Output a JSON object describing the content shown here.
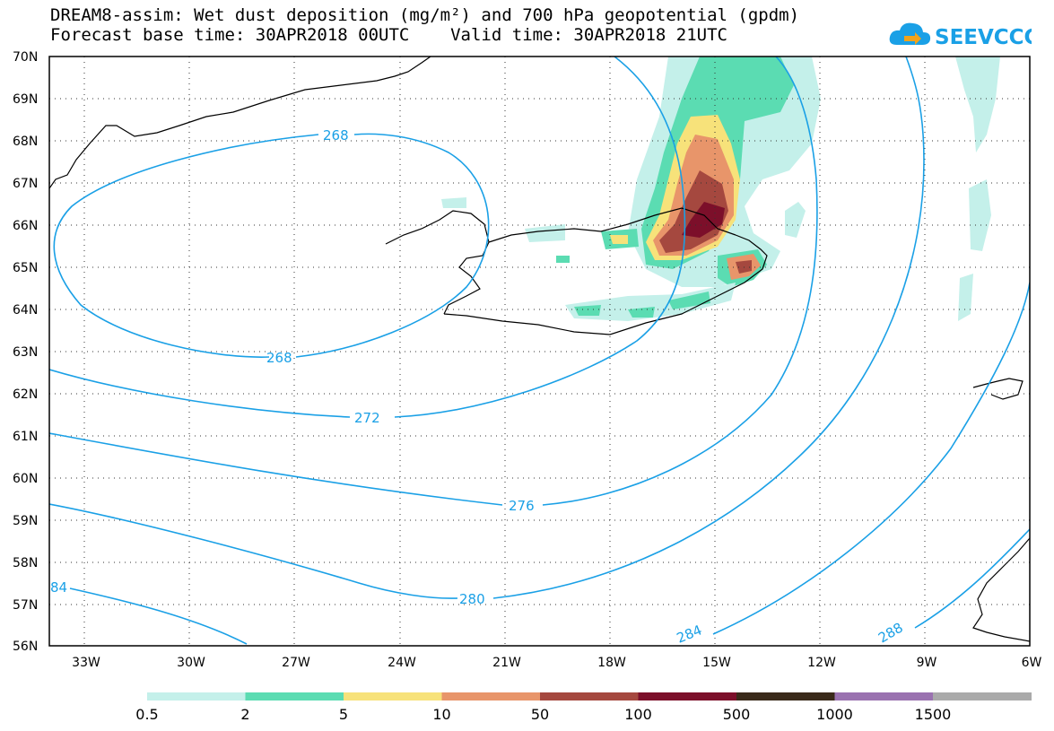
{
  "header": {
    "title_line1": "DREAM8-assim: Wet dust deposition (mg/m²) and 700 hPa geopotential (gpdm)",
    "title_line2": "Forecast base time: 30APR2018 00UTC    Valid time: 30APR2018 21UTC",
    "logo_text": "SEEVCCC",
    "logo_icon": "cloud-arrow-icon"
  },
  "map": {
    "lat_labels": [
      "70N",
      "69N",
      "68N",
      "67N",
      "66N",
      "65N",
      "64N",
      "63N",
      "62N",
      "61N",
      "60N",
      "59N",
      "58N",
      "57N",
      "56N"
    ],
    "lon_labels": [
      "33W",
      "30W",
      "27W",
      "24W",
      "21W",
      "18W",
      "15W",
      "12W",
      "9W",
      "6W"
    ],
    "contour_labels": [
      "268",
      "268",
      "272",
      "276",
      "280",
      "84",
      "284",
      "288"
    ],
    "contour_color": "#1aa0e6"
  },
  "colorbar": {
    "ticks": [
      "0.5",
      "2",
      "5",
      "10",
      "50",
      "100",
      "500",
      "1000",
      "1500"
    ],
    "colors": [
      "#c4f0ea",
      "#5bdcb2",
      "#f7e27a",
      "#e8956a",
      "#a5483f",
      "#7c0f2a",
      "#3a2a1a",
      "#9a72b0",
      "#aaaaaa"
    ]
  }
}
